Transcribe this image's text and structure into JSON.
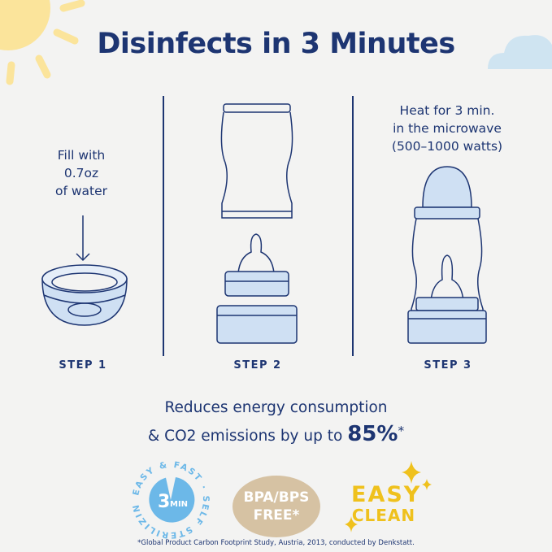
{
  "title": "Disinfects in 3 Minutes",
  "steps": [
    {
      "label": "STEP 1",
      "note_lines": [
        "Fill with",
        "0.7oz",
        "of water"
      ]
    },
    {
      "label": "STEP 2"
    },
    {
      "label": "STEP 3",
      "note_lines": [
        "Heat for 3 min.",
        "in the microwave",
        "(500–1000 watts)"
      ]
    }
  ],
  "claim": {
    "line1": "Reduces energy consumption",
    "line2_prefix": "& CO2 emissions by up to ",
    "highlight": "85%",
    "asterisk": "*"
  },
  "badges": {
    "sterilizing": {
      "number": "3",
      "unit": "MIN",
      "ring_text": "EASY & FAST · SELF STERILIZING ·"
    },
    "bpa": {
      "line1": "BPA/BPS",
      "line2": "FREE*"
    },
    "clean": {
      "line1": "EASY",
      "line2": "CLEAN"
    }
  },
  "footnote": "*Global Product Carbon Footprint Study, Austria, 2013, conducted by Denkstatt.",
  "colors": {
    "navy": "#1d3572",
    "light_blue": "#cfe0f3",
    "sun": "#fbe49b",
    "cloud": "#cfe4f1",
    "badge_blue": "#6cb8e8",
    "tan": "#d6c2a3",
    "gold": "#efc11d"
  }
}
